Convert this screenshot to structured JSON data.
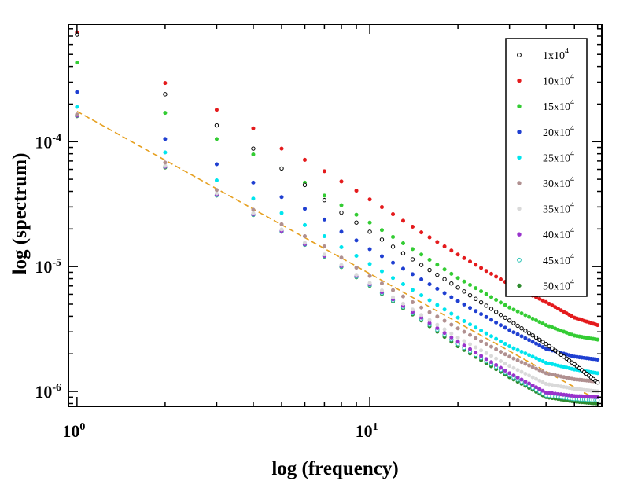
{
  "chart_data": {
    "type": "scatter",
    "xscale": "log",
    "yscale": "log",
    "xlim": [
      0.935,
      62
    ],
    "ylim": [
      7.6e-07,
      0.00087
    ],
    "xlabel": "log (frequency)",
    "ylabel": "log (spectrum)",
    "x_ticks": [
      {
        "value": 1,
        "base": "10",
        "exp": "0"
      },
      {
        "value": 10,
        "base": "10",
        "exp": "1"
      }
    ],
    "y_ticks": [
      {
        "value": 1e-06,
        "base": "10",
        "exp": "-6"
      },
      {
        "value": 1e-05,
        "base": "10",
        "exp": "-5"
      },
      {
        "value": 0.0001,
        "base": "10",
        "exp": "-4"
      }
    ],
    "legend_position": "top-right",
    "series": [
      {
        "name_base": "1x10",
        "name_exp": "4",
        "color": "#000000",
        "filled": false,
        "values": {
          "1": 0.00072,
          "2": 0.00024,
          "3": 0.000135,
          "4": 8.8e-05,
          "5": 6.1e-05,
          "6": 4.5e-05,
          "7": 3.4e-05,
          "8": 2.7e-05,
          "9": 2.25e-05,
          "10": 1.9e-05,
          "15": 1.03e-05,
          "20": 6.8e-06,
          "30": 3.7e-06,
          "40": 2.4e-06,
          "50": 1.65e-06,
          "60": 1.18e-06
        }
      },
      {
        "name_base": "10x10",
        "name_exp": "4",
        "color": "#e41a1c",
        "filled": true,
        "values": {
          "1": 0.00075,
          "2": 0.000295,
          "3": 0.00018,
          "4": 0.000128,
          "5": 8.8e-05,
          "6": 7.15e-05,
          "7": 5.8e-05,
          "8": 4.8e-05,
          "9": 4.05e-05,
          "10": 3.45e-05,
          "15": 1.88e-05,
          "20": 1.25e-05,
          "30": 7.2e-06,
          "40": 5.2e-06,
          "50": 3.9e-06,
          "60": 3.4e-06
        }
      },
      {
        "name_base": "15x10",
        "name_exp": "4",
        "color": "#33cc33",
        "filled": true,
        "values": {
          "1": 0.00043,
          "2": 0.00017,
          "3": 0.000105,
          "4": 7.9e-05,
          "5": 6.1e-05,
          "6": 4.7e-05,
          "7": 3.7e-05,
          "8": 3.1e-05,
          "9": 2.6e-05,
          "10": 2.25e-05,
          "15": 1.25e-05,
          "20": 8.1e-06,
          "30": 4.7e-06,
          "40": 3.4e-06,
          "50": 2.8e-06,
          "60": 2.6e-06
        }
      },
      {
        "name_base": "20x10",
        "name_exp": "4",
        "color": "#1f3fd1",
        "filled": true,
        "values": {
          "1": 0.00025,
          "2": 0.000105,
          "3": 6.6e-05,
          "4": 4.7e-05,
          "5": 3.6e-05,
          "6": 2.9e-05,
          "7": 2.38e-05,
          "8": 1.9e-05,
          "9": 1.62e-05,
          "10": 1.38e-05,
          "15": 7.9e-06,
          "20": 5.3e-06,
          "30": 3.1e-06,
          "40": 2.2e-06,
          "50": 1.9e-06,
          "60": 1.8e-06
        }
      },
      {
        "name_base": "25x10",
        "name_exp": "4",
        "color": "#00e5ee",
        "filled": true,
        "values": {
          "1": 0.00019,
          "2": 8.2e-05,
          "3": 4.9e-05,
          "4": 3.5e-05,
          "5": 2.68e-05,
          "6": 2.15e-05,
          "7": 1.75e-05,
          "8": 1.43e-05,
          "9": 1.22e-05,
          "10": 1.05e-05,
          "15": 5.9e-06,
          "20": 3.9e-06,
          "30": 2.3e-06,
          "40": 1.7e-06,
          "50": 1.5e-06,
          "60": 1.4e-06
        }
      },
      {
        "name_base": "30x10",
        "name_exp": "4",
        "color": "#b09090",
        "filled": true,
        "values": {
          "1": 0.000165,
          "2": 6.8e-05,
          "3": 4.1e-05,
          "4": 2.85e-05,
          "5": 2.18e-05,
          "6": 1.75e-05,
          "7": 1.45e-05,
          "8": 1.18e-05,
          "9": 9.8e-06,
          "10": 8.4e-06,
          "15": 4.7e-06,
          "20": 3.2e-06,
          "30": 1.9e-06,
          "40": 1.4e-06,
          "50": 1.25e-06,
          "60": 1.2e-06
        }
      },
      {
        "name_base": "35x10",
        "name_exp": "4",
        "color": "#d9d9d9",
        "filled": true,
        "values": {
          "1": 0.000165,
          "2": 6.4e-05,
          "3": 3.85e-05,
          "4": 2.68e-05,
          "5": 1.98e-05,
          "6": 1.55e-05,
          "7": 1.25e-05,
          "8": 1.03e-05,
          "9": 8.6e-06,
          "10": 7.4e-06,
          "15": 4.1e-06,
          "20": 2.7e-06,
          "30": 1.6e-06,
          "40": 1.15e-06,
          "50": 1.05e-06,
          "60": 1e-06
        }
      },
      {
        "name_base": "40x10",
        "name_exp": "4",
        "color": "#9933cc",
        "filled": true,
        "values": {
          "1": 0.000162,
          "2": 6.3e-05,
          "3": 3.75e-05,
          "4": 2.62e-05,
          "5": 1.93e-05,
          "6": 1.51e-05,
          "7": 1.22e-05,
          "8": 1.01e-05,
          "9": 8.4e-06,
          "10": 7.2e-06,
          "15": 3.9e-06,
          "20": 2.5e-06,
          "30": 1.4e-06,
          "40": 9.8e-07,
          "50": 9.2e-07,
          "60": 9e-07
        }
      },
      {
        "name_base": "45x10",
        "name_exp": "4",
        "color": "#2ec4b6",
        "filled": false,
        "values": {
          "1": 0.000162,
          "2": 6.3e-05,
          "3": 3.72e-05,
          "4": 2.6e-05,
          "5": 1.91e-05,
          "6": 1.5e-05,
          "7": 1.21e-05,
          "8": 1e-05,
          "9": 8.3e-06,
          "10": 7.1e-06,
          "15": 3.8e-06,
          "20": 2.4e-06,
          "30": 1.35e-06,
          "40": 9.3e-07,
          "50": 8.7e-07,
          "60": 8.5e-07
        }
      },
      {
        "name_base": "50x10",
        "name_exp": "4",
        "color": "#2e8b2e",
        "filled": true,
        "values": {
          "1": 0.00016,
          "2": 6.2e-05,
          "3": 3.7e-05,
          "4": 2.58e-05,
          "5": 1.9e-05,
          "6": 1.49e-05,
          "7": 1.2e-05,
          "8": 9.9e-06,
          "9": 8.2e-06,
          "10": 7e-06,
          "15": 3.7e-06,
          "20": 2.3e-06,
          "30": 1.3e-06,
          "40": 9e-07,
          "50": 8.3e-07,
          "60": 8e-07
        }
      }
    ],
    "reference_line": {
      "color": "#e6a020",
      "style": "dashed",
      "intercept": 0.000175,
      "slope": -1.3
    }
  }
}
